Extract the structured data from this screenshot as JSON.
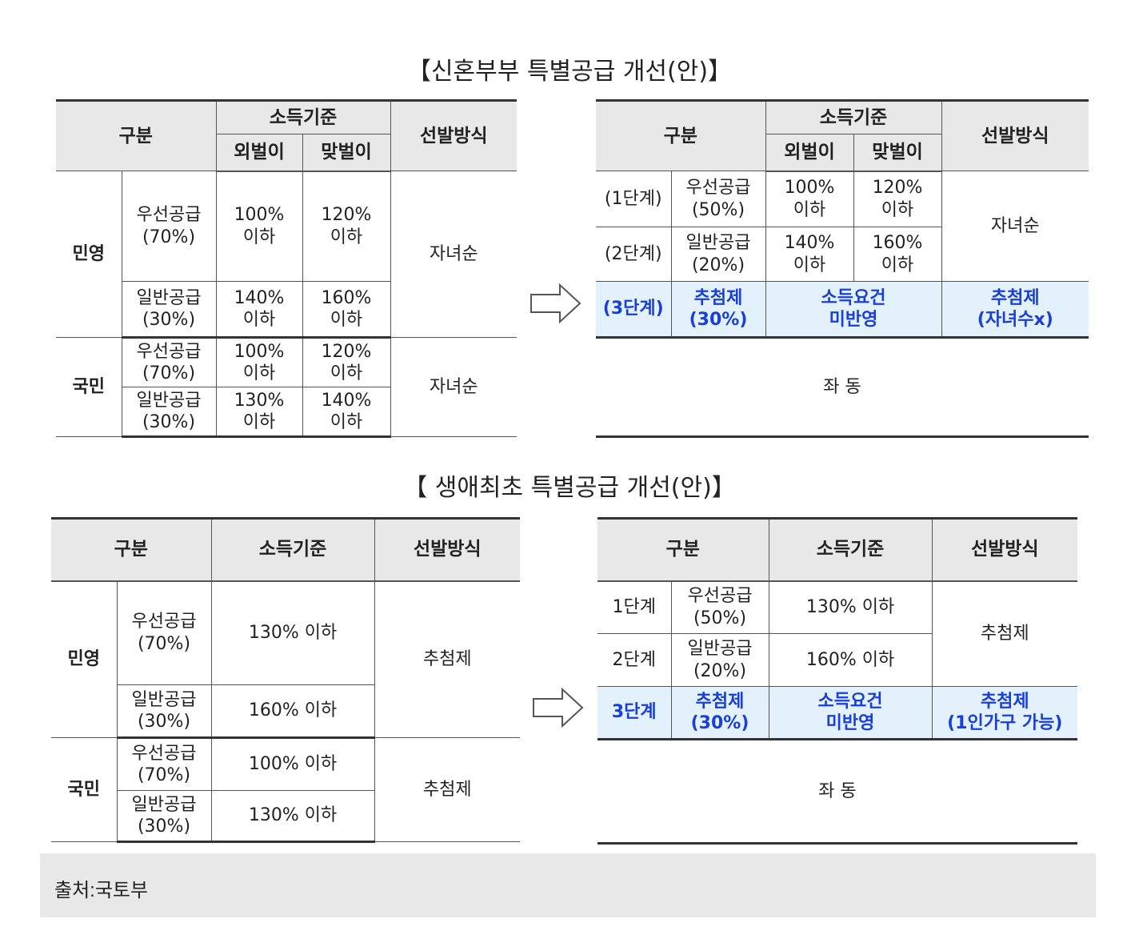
{
  "section1": {
    "title": "【신혼부부 특별공급 개선(안)】",
    "left": {
      "h_category": "구분",
      "h_income": "소득기준",
      "h_single": "외벌이",
      "h_dual": "맞벌이",
      "h_selection": "선발방식",
      "private": {
        "label": "민영",
        "priority": "우선공급\n(70%)",
        "priority_single": "100%\n이하",
        "priority_dual": "120%\n이하",
        "general": "일반공급\n(30%)",
        "general_single": "140%\n이하",
        "general_dual": "160%\n이하",
        "selection": "자녀순"
      },
      "public": {
        "label": "국민",
        "priority": "우선공급\n(70%)",
        "priority_single": "100%\n이하",
        "priority_dual": "120%\n이하",
        "general": "일반공급\n(30%)",
        "general_single": "130%\n이하",
        "general_dual": "140%\n이하",
        "selection": "자녀순"
      }
    },
    "right": {
      "h_category": "구분",
      "h_income": "소득기준",
      "h_single": "외벌이",
      "h_dual": "맞벌이",
      "h_selection": "선발방식",
      "stage1": "(1단계)",
      "stage1_type": "우선공급\n(50%)",
      "stage1_single": "100%\n이하",
      "stage1_dual": "120%\n이하",
      "stage2": "(2단계)",
      "stage2_type": "일반공급\n(20%)",
      "stage2_single": "140%\n이하",
      "stage2_dual": "160%\n이하",
      "stage12_selection": "자녀순",
      "stage3": "(3단계)",
      "stage3_type": "추첨제\n(30%)",
      "stage3_income": "소득요건\n미반영",
      "stage3_selection": "추첨제\n(자녀수x)",
      "same": "좌 동"
    }
  },
  "section2": {
    "title": "【 생애최초 특별공급 개선(안)】",
    "left": {
      "h_category": "구분",
      "h_income": "소득기준",
      "h_selection": "선발방식",
      "private": {
        "label": "민영",
        "priority": "우선공급\n(70%)",
        "priority_income": "130% 이하",
        "general": "일반공급\n(30%)",
        "general_income": "160% 이하",
        "selection": "추첨제"
      },
      "public": {
        "label": "국민",
        "priority": "우선공급\n(70%)",
        "priority_income": "100% 이하",
        "general": "일반공급\n(30%)",
        "general_income": "130% 이하",
        "selection": "추첨제"
      }
    },
    "right": {
      "h_category": "구분",
      "h_income": "소득기준",
      "h_selection": "선발방식",
      "stage1": "1단계",
      "stage1_type": "우선공급\n(50%)",
      "stage1_income": "130% 이하",
      "stage2": "2단계",
      "stage2_type": "일반공급\n(20%)",
      "stage2_income": "160% 이하",
      "stage12_selection": "추첨제",
      "stage3": "3단계",
      "stage3_type": "추첨제\n(30%)",
      "stage3_income": "소득요건\n미반영",
      "stage3_selection": "추첨제\n(1인가구 가능)",
      "same": "좌 동"
    }
  },
  "footer": {
    "source": "출처:국토부"
  },
  "colors": {
    "header_bg": "#e8e8e8",
    "highlight_bg": "#e3f1fd",
    "highlight_text": "#1a3fd6"
  },
  "icons": [
    "right-arrow-icon"
  ]
}
